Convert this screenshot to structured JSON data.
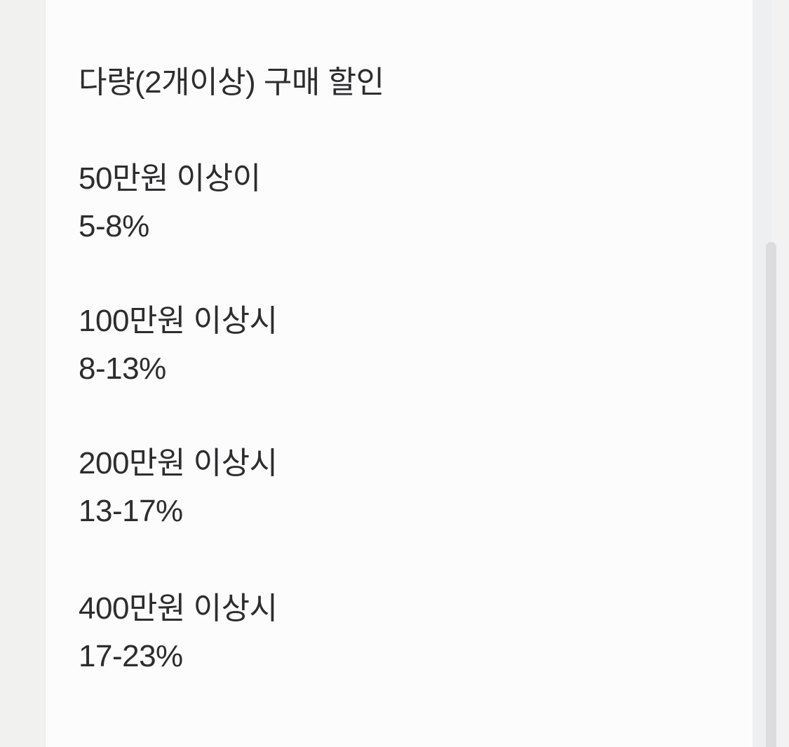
{
  "theme": {
    "bg": "#fcfcfc",
    "gutter": "#f1f1ef",
    "rail": "#f0f0f1",
    "thumb": "#dcdcde",
    "text": "#2d2d2f"
  },
  "notice": {
    "title": "다량(2개이상) 구매 할인",
    "tiers": [
      {
        "condition": "50만원 이상이",
        "discount": "5-8%"
      },
      {
        "condition": "100만원 이상시",
        "discount": "8-13%"
      },
      {
        "condition": "200만원 이상시",
        "discount": "13-17%"
      },
      {
        "condition": "400만원 이상시",
        "discount": "17-23%"
      }
    ]
  }
}
